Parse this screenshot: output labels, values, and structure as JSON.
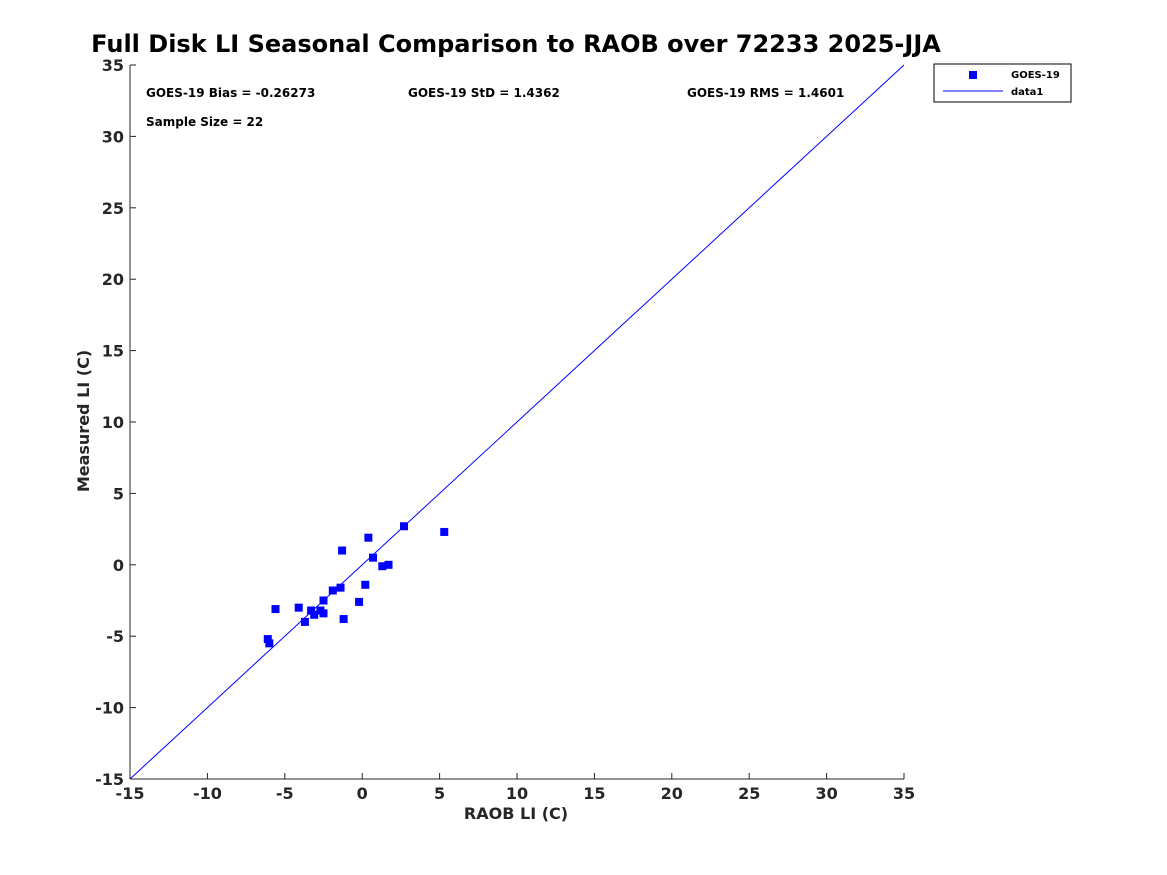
{
  "chart_data": {
    "type": "scatter",
    "title": "Full Disk LI Seasonal Comparison to RAOB over 72233 2025-JJA",
    "xlabel": "RAOB LI (C)",
    "ylabel": "Measured LI (C)",
    "xlim": [
      -15,
      35
    ],
    "ylim": [
      -15,
      35
    ],
    "xticks": [
      -15,
      -10,
      -5,
      0,
      5,
      10,
      15,
      20,
      25,
      30,
      35
    ],
    "yticks": [
      -15,
      -10,
      -5,
      0,
      5,
      10,
      15,
      20,
      25,
      30,
      35
    ],
    "grid": false,
    "legend_position": "top-right (outside axes)",
    "annotations": {
      "bias": "GOES-19 Bias = -0.26273",
      "std": "GOES-19 StD = 1.4362",
      "rms": "GOES-19 RMS = 1.4601",
      "sample": "Sample Size = 22"
    },
    "series": [
      {
        "name": "GOES-19",
        "kind": "scatter",
        "marker": "square",
        "color": "#0000ff",
        "points": [
          [
            -6.1,
            -5.2
          ],
          [
            -6.0,
            -5.5
          ],
          [
            -5.6,
            -3.1
          ],
          [
            -4.1,
            -3.0
          ],
          [
            -3.7,
            -4.0
          ],
          [
            -3.3,
            -3.2
          ],
          [
            -3.1,
            -3.5
          ],
          [
            -2.7,
            -3.2
          ],
          [
            -2.5,
            -3.4
          ],
          [
            -2.5,
            -2.5
          ],
          [
            -1.9,
            -1.8
          ],
          [
            -1.4,
            -1.6
          ],
          [
            -1.3,
            1.0
          ],
          [
            -1.2,
            -3.8
          ],
          [
            -0.2,
            -2.6
          ],
          [
            0.2,
            -1.4
          ],
          [
            0.4,
            1.9
          ],
          [
            0.7,
            0.5
          ],
          [
            1.3,
            -0.1
          ],
          [
            1.7,
            0.0
          ],
          [
            2.7,
            2.7
          ],
          [
            5.3,
            2.3
          ]
        ]
      },
      {
        "name": "data1",
        "kind": "line",
        "color": "#0000ff",
        "x": [
          -15,
          35
        ],
        "y": [
          -15,
          35
        ]
      }
    ]
  }
}
